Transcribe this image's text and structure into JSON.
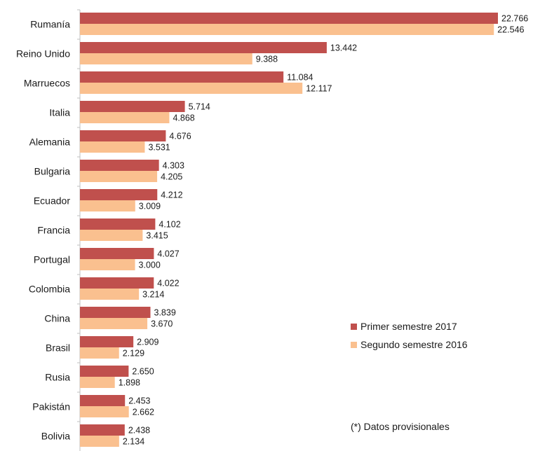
{
  "chart_data": {
    "type": "bar",
    "orientation": "horizontal",
    "categories": [
      "Rumanía",
      "Reino Unido",
      "Marruecos",
      "Italia",
      "Alemania",
      "Bulgaria",
      "Ecuador",
      "Francia",
      "Portugal",
      "Colombia",
      "China",
      "Brasil",
      "Rusia",
      "Pakistán",
      "Bolivia"
    ],
    "series": [
      {
        "name": "Primer semestre 2017",
        "color": "#c0504d",
        "values": [
          22766,
          13442,
          11084,
          5714,
          4676,
          4303,
          4212,
          4102,
          4027,
          4022,
          3839,
          2909,
          2650,
          2453,
          2438
        ],
        "labels": [
          "22.766",
          "13.442",
          "11.084",
          "5.714",
          "4.676",
          "4.303",
          "4.212",
          "4.102",
          "4.027",
          "4.022",
          "3.839",
          "2.909",
          "2.650",
          "2.453",
          "2.438"
        ]
      },
      {
        "name": "Segundo semestre 2016",
        "color": "#fac08f",
        "values": [
          22546,
          9388,
          12117,
          4868,
          3531,
          4205,
          3009,
          3415,
          3000,
          3214,
          3670,
          2129,
          1898,
          2662,
          2134
        ],
        "labels": [
          "22.546",
          "9.388",
          "12.117",
          "4.868",
          "3.531",
          "4.205",
          "3.009",
          "3.415",
          "3.000",
          "3.214",
          "3.670",
          "2.129",
          "1.898",
          "2.662",
          "2.134"
        ]
      }
    ],
    "xlim": [
      0,
      23000
    ],
    "grid": false,
    "legend_position": "bottom-right",
    "footnote": "(*) Datos provisionales"
  }
}
